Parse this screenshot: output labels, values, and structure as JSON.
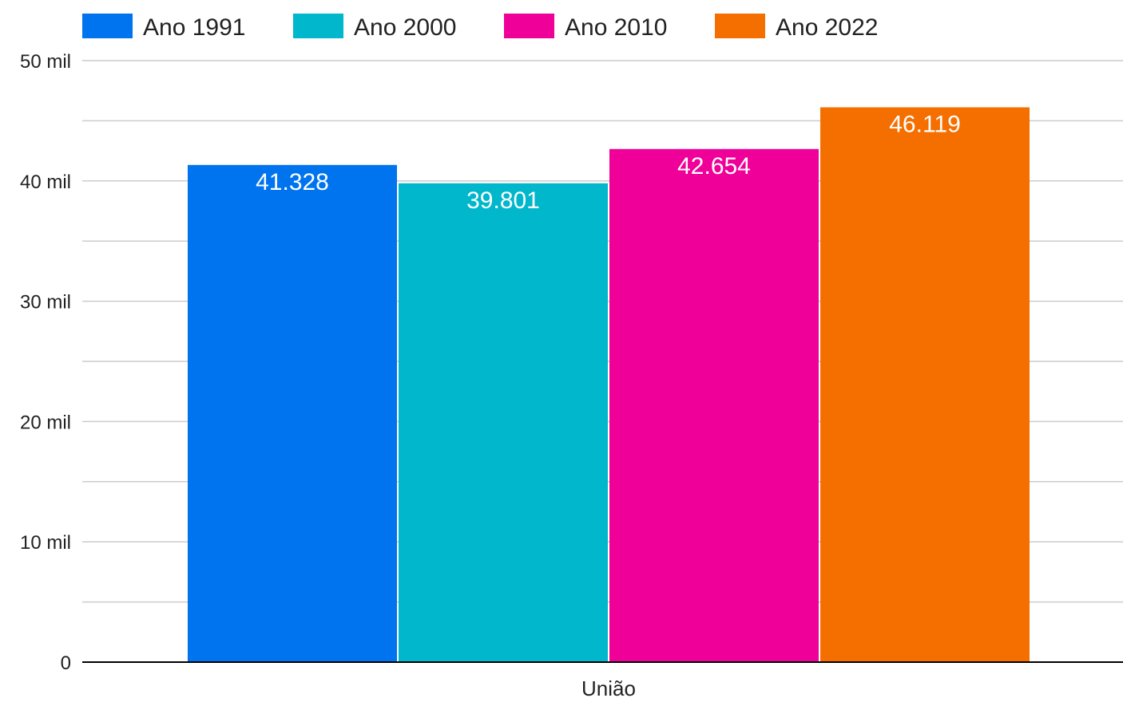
{
  "chart_data": {
    "type": "bar",
    "title": "",
    "xlabel": "",
    "ylabel": "",
    "categories": [
      "União"
    ],
    "series": [
      {
        "name": "Ano 1991",
        "values": [
          41328
        ],
        "value_labels": [
          "41.328"
        ],
        "color": "#0073ef"
      },
      {
        "name": "Ano 2000",
        "values": [
          39801
        ],
        "value_labels": [
          "39.801"
        ],
        "color": "#00b7cb"
      },
      {
        "name": "Ano 2010",
        "values": [
          42654
        ],
        "value_labels": [
          "42.654"
        ],
        "color": "#ef0098"
      },
      {
        "name": "Ano 2022",
        "values": [
          46119
        ],
        "value_labels": [
          "46.119"
        ],
        "color": "#f56f00"
      }
    ],
    "ylim": [
      0,
      50000
    ],
    "y_ticks": [
      0,
      10000,
      20000,
      30000,
      40000,
      50000
    ],
    "y_tick_labels": [
      "0",
      "10 mil",
      "20 mil",
      "30 mil",
      "40 mil",
      "50 mil"
    ],
    "y_minor_ticks": [
      5000,
      15000,
      25000,
      35000,
      45000
    ],
    "grid": true,
    "legend_position": "top-left",
    "colors": {
      "grid": "#cccccc",
      "axis": "#000000",
      "text": "#222222",
      "data_label": "#ffffff"
    }
  }
}
